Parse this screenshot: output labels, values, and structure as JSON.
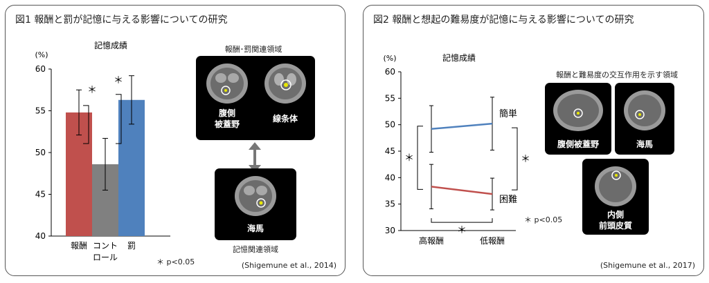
{
  "figure1": {
    "title": "図1  報酬と罰が記憶に与える影響についての研究",
    "citation": "(Shigemune et al., 2014)",
    "significance_note": "＊ p<0.05",
    "regions_title": "報酬･罰関連領域",
    "memory_region_title": "記憶関連領域",
    "brain_labels": {
      "vta_line1": "腹側",
      "vta_line2": "被蓋野",
      "striatum": "線条体",
      "hippocampus": "海馬"
    }
  },
  "figure2": {
    "title": "図2  報酬と想起の難易度が記憶に与える影響についての研究",
    "citation": "(Shigemune et al., 2017)",
    "significance_note": "＊ p<0.05",
    "interaction_title": "報酬と難易度の交互作用を示す領域",
    "brain_labels": {
      "vta": "腹側被蓋野",
      "hippocampus": "海馬",
      "mpfc_line1": "内側",
      "mpfc_line2": "前頭皮質"
    }
  },
  "chart_data": [
    {
      "type": "bar",
      "title": "記憶成績",
      "ylabel": "(%)",
      "categories": [
        "報酬",
        "コントロール",
        "罰"
      ],
      "category_lines": [
        [
          "報酬"
        ],
        [
          "コント",
          "ロール"
        ],
        [
          "罰"
        ]
      ],
      "values": [
        54.8,
        48.6,
        56.3
      ],
      "error": [
        2.7,
        3.1,
        2.9
      ],
      "colors": [
        "#c0504d",
        "#808080",
        "#4f81bd"
      ],
      "ylim": [
        40,
        60
      ],
      "yticks": [
        40,
        45,
        50,
        55,
        60
      ],
      "significance": [
        {
          "between": [
            0,
            1
          ],
          "label": "＊"
        },
        {
          "between": [
            1,
            2
          ],
          "label": "＊"
        }
      ]
    },
    {
      "type": "line",
      "title": "記憶成績",
      "ylabel": "(%)",
      "categories": [
        "高報酬",
        "低報酬"
      ],
      "series": [
        {
          "name": "簡単",
          "values": [
            49.2,
            50.2
          ],
          "error": [
            4.4,
            5.0
          ],
          "color": "#4f81bd"
        },
        {
          "name": "困難",
          "values": [
            38.3,
            36.9
          ],
          "error": [
            4.2,
            3.0
          ],
          "color": "#c0504d"
        }
      ],
      "ylim": [
        30,
        60
      ],
      "yticks": [
        30,
        35,
        40,
        45,
        50,
        55,
        60
      ],
      "significance": [
        {
          "label": "＊",
          "between": "高報酬 簡単 vs 困難"
        },
        {
          "label": "＊",
          "between": "低報酬 簡単 vs 困難"
        },
        {
          "label": "＊",
          "between": "困難 高報酬 vs 低報酬"
        }
      ]
    }
  ]
}
